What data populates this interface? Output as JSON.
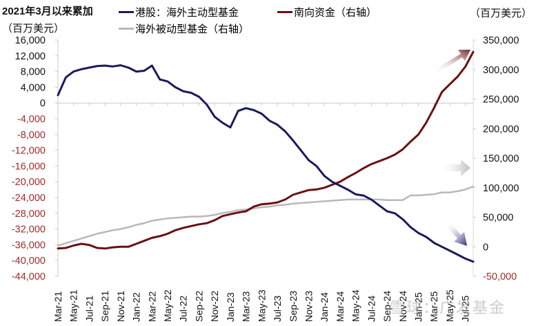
{
  "header": {
    "title": "2021年3月以来累加",
    "unit_left": "（百万美元）",
    "unit_right": "（百万美元）"
  },
  "legend": [
    {
      "label": "港股：海外主动型基金",
      "color": "#1a1a5e"
    },
    {
      "label": "海外被动型基金（右轴）",
      "color": "#b8b8b8"
    },
    {
      "label": "南向资金（右轴）",
      "color": "#6b0f0f"
    }
  ],
  "watermark": "雪球：广发基金",
  "chart_data": {
    "type": "line",
    "title": "2021年3月以来累加",
    "xlabel": "",
    "ylabel": "百万美元",
    "y2label": "百万美元",
    "legend_position": "top",
    "grid": false,
    "x_ticks": [
      "Mar-21",
      "May-21",
      "Jul-21",
      "Sep-21",
      "Nov-21",
      "Jan-22",
      "Mar-22",
      "May-22",
      "Jul-22",
      "Sep-22",
      "Nov-22",
      "Jan-23",
      "Mar-23",
      "May-23",
      "Jul-23",
      "Sep-23",
      "Nov-23",
      "Jan-24",
      "Mar-24",
      "May-24",
      "Jul-24",
      "Sep-24",
      "Nov-24",
      "Jan-25",
      "Mar-25",
      "May-25",
      "Jul-25"
    ],
    "left_axis": {
      "ylim": [
        -44000,
        16000
      ],
      "ticks": [
        16000,
        12000,
        8000,
        4000,
        0,
        -4000,
        -8000,
        -12000,
        -16000,
        -20000,
        -24000,
        -28000,
        -32000,
        -36000,
        -40000,
        -44000
      ],
      "tick_labels": [
        "16,000",
        "12,000",
        "8,000",
        "4,000",
        "0",
        "-4,000",
        "-8,000",
        "-12,000",
        "-16,000",
        "-20,000",
        "-24,000",
        "-28,000",
        "-32,000",
        "-36,000",
        "-40,000",
        "-44,000"
      ]
    },
    "right_axis": {
      "ylim": [
        -50000,
        350000
      ],
      "ticks": [
        350000,
        300000,
        250000,
        200000,
        150000,
        100000,
        50000,
        0,
        -50000
      ],
      "tick_labels": [
        "350,000",
        "300,000",
        "250,000",
        "200,000",
        "150,000",
        "100,000",
        "50,000",
        "0",
        "-50,000"
      ]
    },
    "x": [
      "Mar-21",
      "Apr-21",
      "May-21",
      "Jun-21",
      "Jul-21",
      "Aug-21",
      "Sep-21",
      "Oct-21",
      "Nov-21",
      "Dec-21",
      "Jan-22",
      "Feb-22",
      "Mar-22",
      "Apr-22",
      "May-22",
      "Jun-22",
      "Jul-22",
      "Aug-22",
      "Sep-22",
      "Oct-22",
      "Nov-22",
      "Dec-22",
      "Jan-23",
      "Feb-23",
      "Mar-23",
      "Apr-23",
      "May-23",
      "Jun-23",
      "Jul-23",
      "Aug-23",
      "Sep-23",
      "Oct-23",
      "Nov-23",
      "Dec-23",
      "Jan-24",
      "Feb-24",
      "Mar-24",
      "Apr-24",
      "May-24",
      "Jun-24",
      "Jul-24",
      "Aug-24",
      "Sep-24",
      "Oct-24",
      "Nov-24",
      "Dec-24",
      "Jan-25",
      "Feb-25",
      "Mar-25",
      "Apr-25",
      "May-25",
      "Jun-25",
      "Jul-25",
      "Aug-25"
    ],
    "series": [
      {
        "name": "港股：海外主动型基金",
        "axis": "left",
        "color": "#1a1a5e",
        "values": [
          2000,
          6500,
          8000,
          8600,
          9000,
          9400,
          9500,
          9300,
          9600,
          9000,
          8000,
          8200,
          9500,
          6000,
          5500,
          4000,
          3000,
          2600,
          1600,
          -400,
          -3500,
          -5000,
          -6200,
          -2000,
          -1300,
          -1800,
          -2700,
          -4500,
          -5500,
          -7200,
          -9500,
          -12000,
          -14500,
          -16000,
          -18500,
          -20000,
          -21000,
          -22000,
          -23200,
          -23500,
          -24500,
          -26000,
          -27500,
          -28000,
          -29500,
          -31500,
          -33000,
          -34000,
          -35500,
          -36500,
          -37500,
          -38500,
          -39500,
          -40300
        ]
      },
      {
        "name": "南向资金（右轴）",
        "axis": "right",
        "color": "#6b0f0f",
        "values": [
          -3000,
          -2000,
          2000,
          5000,
          3000,
          -2000,
          -3000,
          -1000,
          0,
          0,
          5000,
          10000,
          15000,
          18000,
          22000,
          28000,
          32000,
          35000,
          38000,
          40000,
          45000,
          52000,
          55000,
          58000,
          60000,
          68000,
          72000,
          73000,
          75000,
          80000,
          88000,
          92000,
          96000,
          97000,
          100000,
          105000,
          110000,
          118000,
          125000,
          133000,
          140000,
          145000,
          150000,
          156000,
          165000,
          178000,
          190000,
          210000,
          235000,
          262000,
          275000,
          288000,
          305000,
          330000
        ]
      },
      {
        "name": "海外被动型基金（右轴）",
        "axis": "right",
        "color": "#b8b8b8",
        "values": [
          2000,
          6000,
          10000,
          14000,
          18000,
          22000,
          25000,
          28000,
          30000,
          33000,
          37000,
          40000,
          44000,
          46000,
          48000,
          49000,
          50000,
          51000,
          51000,
          52000,
          54000,
          57000,
          59000,
          62000,
          63000,
          65000,
          67000,
          68000,
          70000,
          71000,
          73000,
          74000,
          75000,
          76000,
          77000,
          78000,
          79000,
          80000,
          80000,
          80000,
          80000,
          80000,
          79000,
          79000,
          79000,
          87000,
          87000,
          88000,
          89000,
          92000,
          92000,
          94000,
          97000,
          102000
        ]
      }
    ],
    "annotations": [
      {
        "type": "arrow",
        "direction": "up-right",
        "color": "#8b3a3a",
        "near_series": "南向资金（右轴）"
      },
      {
        "type": "arrow",
        "direction": "right",
        "color": "#c8c8c8",
        "near_series": "海外被动型基金（右轴）"
      },
      {
        "type": "arrow",
        "direction": "down-right",
        "color": "#2e2e7a",
        "near_series": "港股：海外主动型基金"
      }
    ]
  }
}
